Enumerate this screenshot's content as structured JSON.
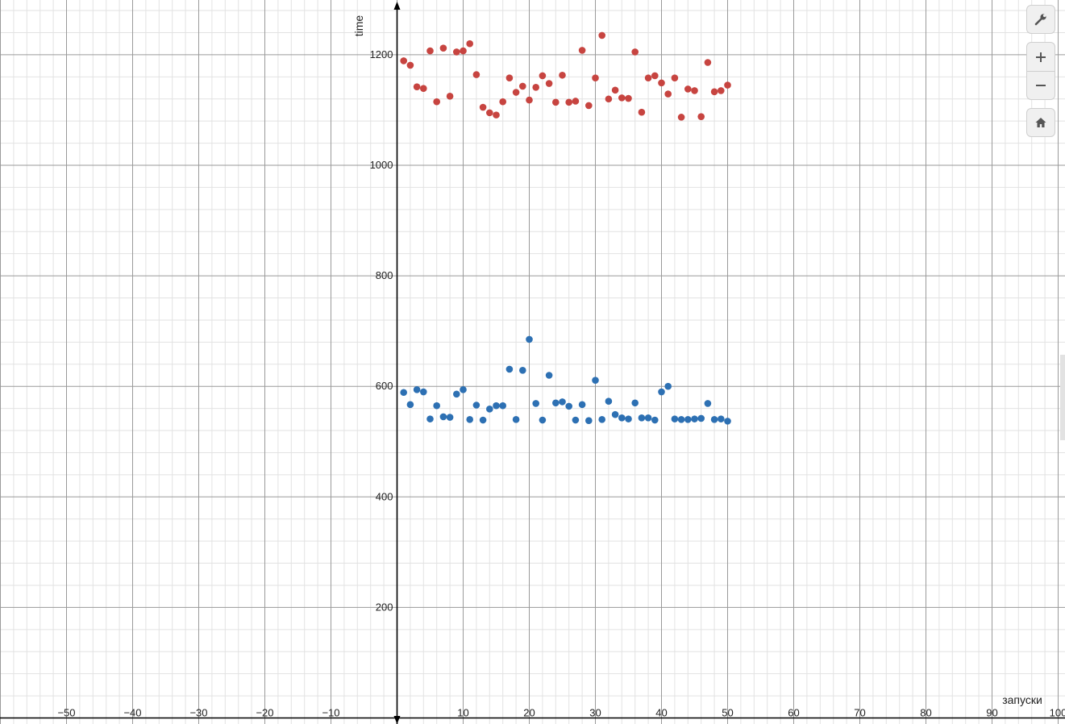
{
  "chart_data": {
    "type": "scatter",
    "xlabel": "запуски",
    "ylabel": "time",
    "xlim": [
      -60,
      100
    ],
    "ylim": [
      0,
      1300
    ],
    "x_ticks": [
      -50,
      -40,
      -30,
      -20,
      -10,
      10,
      20,
      30,
      40,
      50,
      60,
      70,
      80,
      90,
      100
    ],
    "y_ticks": [
      200,
      400,
      600,
      800,
      1000,
      1200
    ],
    "grid": true,
    "series": [
      {
        "color": "#c74440",
        "points": [
          [
            1,
            1189
          ],
          [
            2,
            1181
          ],
          [
            3,
            1142
          ],
          [
            4,
            1139
          ],
          [
            5,
            1207
          ],
          [
            6,
            1115
          ],
          [
            7,
            1212
          ],
          [
            8,
            1125
          ],
          [
            9,
            1205
          ],
          [
            10,
            1207
          ],
          [
            11,
            1220
          ],
          [
            12,
            1164
          ],
          [
            13,
            1105
          ],
          [
            14,
            1095
          ],
          [
            15,
            1091
          ],
          [
            16,
            1115
          ],
          [
            17,
            1158
          ],
          [
            18,
            1132
          ],
          [
            19,
            1143
          ],
          [
            20,
            1118
          ],
          [
            21,
            1141
          ],
          [
            22,
            1162
          ],
          [
            23,
            1148
          ],
          [
            24,
            1114
          ],
          [
            25,
            1163
          ],
          [
            26,
            1114
          ],
          [
            27,
            1116
          ],
          [
            28,
            1208
          ],
          [
            29,
            1108
          ],
          [
            30,
            1158
          ],
          [
            31,
            1235
          ],
          [
            32,
            1120
          ],
          [
            33,
            1136
          ],
          [
            34,
            1122
          ],
          [
            35,
            1121
          ],
          [
            36,
            1205
          ],
          [
            37,
            1096
          ],
          [
            38,
            1158
          ],
          [
            39,
            1162
          ],
          [
            40,
            1149
          ],
          [
            41,
            1129
          ],
          [
            42,
            1158
          ],
          [
            43,
            1087
          ],
          [
            44,
            1138
          ],
          [
            45,
            1135
          ],
          [
            46,
            1088
          ],
          [
            47,
            1186
          ],
          [
            48,
            1133
          ],
          [
            49,
            1135
          ],
          [
            50,
            1145
          ]
        ]
      },
      {
        "color": "#2d70b3",
        "points": [
          [
            1,
            589
          ],
          [
            2,
            567
          ],
          [
            3,
            594
          ],
          [
            4,
            590
          ],
          [
            5,
            541
          ],
          [
            6,
            565
          ],
          [
            7,
            545
          ],
          [
            8,
            544
          ],
          [
            9,
            586
          ],
          [
            10,
            594
          ],
          [
            11,
            540
          ],
          [
            12,
            566
          ],
          [
            13,
            539
          ],
          [
            14,
            559
          ],
          [
            15,
            565
          ],
          [
            16,
            565
          ],
          [
            17,
            631
          ],
          [
            18,
            540
          ],
          [
            19,
            629
          ],
          [
            20,
            685
          ],
          [
            21,
            569
          ],
          [
            22,
            539
          ],
          [
            23,
            620
          ],
          [
            24,
            570
          ],
          [
            25,
            572
          ],
          [
            26,
            564
          ],
          [
            27,
            539
          ],
          [
            28,
            567
          ],
          [
            29,
            538
          ],
          [
            30,
            611
          ],
          [
            31,
            540
          ],
          [
            32,
            573
          ],
          [
            33,
            549
          ],
          [
            34,
            543
          ],
          [
            35,
            541
          ],
          [
            36,
            570
          ],
          [
            37,
            543
          ],
          [
            38,
            543
          ],
          [
            39,
            539
          ],
          [
            40,
            590
          ],
          [
            41,
            600
          ],
          [
            42,
            541
          ],
          [
            43,
            540
          ],
          [
            44,
            540
          ],
          [
            45,
            541
          ],
          [
            46,
            542
          ],
          [
            47,
            569
          ],
          [
            48,
            540
          ],
          [
            49,
            541
          ],
          [
            50,
            537
          ]
        ]
      }
    ]
  },
  "controls": {
    "settings_icon": "wrench-icon",
    "zoom_in_icon": "plus-icon",
    "zoom_out_icon": "minus-icon",
    "home_icon": "home-icon"
  }
}
